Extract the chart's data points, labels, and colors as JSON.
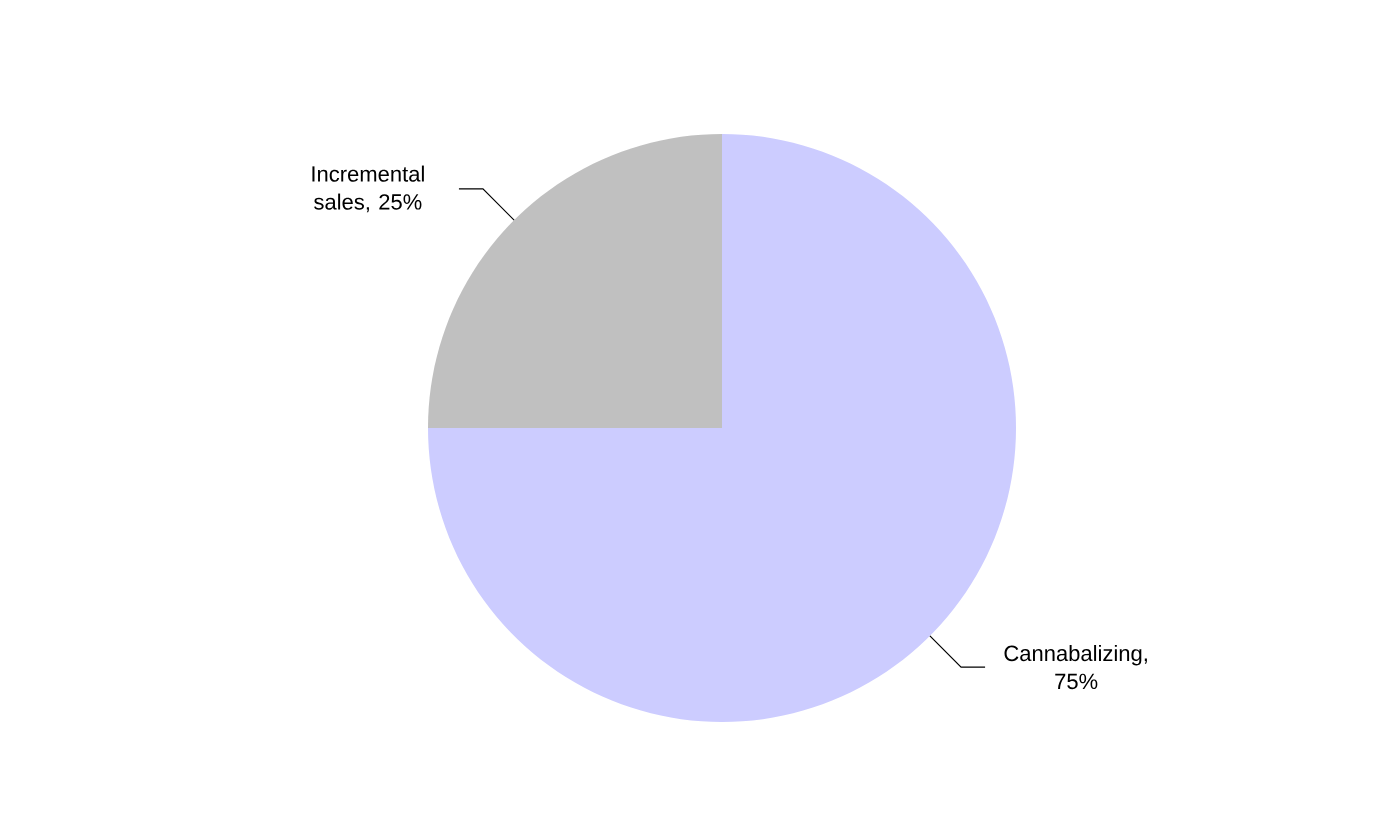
{
  "chart_data": {
    "type": "pie",
    "categories": [
      null,
      null
    ],
    "values": [
      25,
      75
    ],
    "colors": [
      "#c0c0c0",
      "#ccccff"
    ],
    "value_labels": [
      "Incremental sales, 25%",
      "Cannabalizing, 75%"
    ]
  }
}
